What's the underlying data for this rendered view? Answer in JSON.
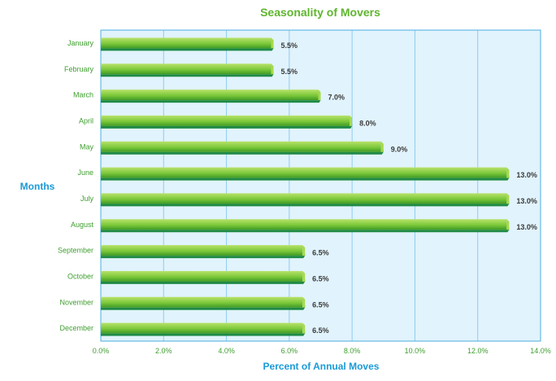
{
  "chart_data": {
    "type": "bar",
    "orientation": "horizontal",
    "title": "Seasonality of Movers",
    "xlabel": "Percent of Annual Moves",
    "ylabel": "Months",
    "categories": [
      "January",
      "February",
      "March",
      "April",
      "May",
      "June",
      "July",
      "August",
      "September",
      "October",
      "November",
      "December"
    ],
    "values": [
      5.5,
      5.5,
      7.0,
      8.0,
      9.0,
      13.0,
      13.0,
      13.0,
      6.5,
      6.5,
      6.5,
      6.5
    ],
    "value_labels": [
      "5.5%",
      "5.5%",
      "7.0%",
      "8.0%",
      "9.0%",
      "13.0%",
      "13.0%",
      "13.0%",
      "6.5%",
      "6.5%",
      "6.5%",
      "6.5%"
    ],
    "xlim": [
      0,
      14
    ],
    "x_ticks": [
      0,
      2,
      4,
      6,
      8,
      10,
      12,
      14
    ],
    "x_tick_labels": [
      "0.0%",
      "2.0%",
      "4.0%",
      "6.0%",
      "8.0%",
      "10.0%",
      "12.0%",
      "14.0%"
    ],
    "grid": "vertical",
    "legend": "none",
    "colors": {
      "title": "#5fb52e",
      "axis_title": "#1a9ad6",
      "tick_label": "#3f9e2f",
      "plot_background": "#e1f3fc",
      "plot_border": "#4aaee0",
      "gridline": "#8ecdf0",
      "bar_top": "#b8e26a",
      "bar_mid": "#7cc83a",
      "bar_bottom": "#3e9a25",
      "bar_underside": "#1f8a45",
      "bar_end": "#a6d94a",
      "value_label": "#3a3a3a"
    }
  }
}
